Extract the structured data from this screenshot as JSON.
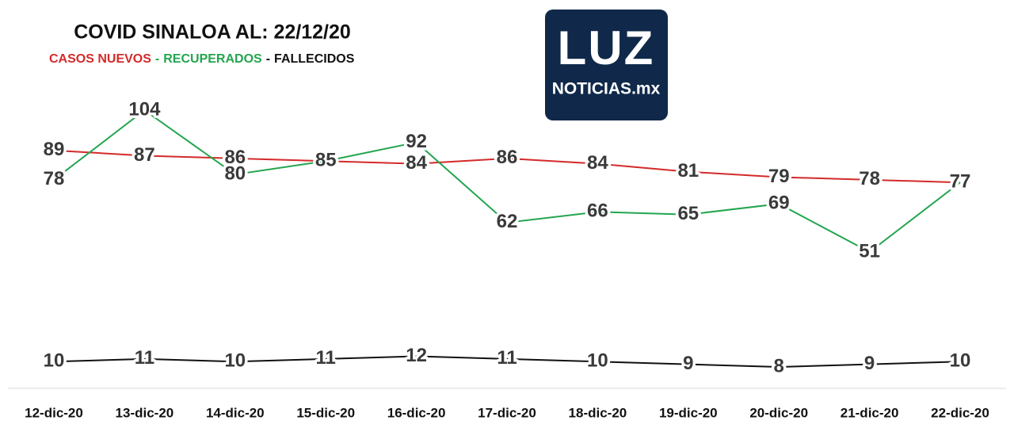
{
  "chart_data": {
    "type": "line",
    "title": "COVID SINALOA AL: 22/12/20",
    "legend_separator": "-",
    "categories": [
      "12-dic-20",
      "13-dic-20",
      "14-dic-20",
      "15-dic-20",
      "16-dic-20",
      "17-dic-20",
      "18-dic-20",
      "19-dic-20",
      "20-dic-20",
      "21-dic-20",
      "22-dic-20"
    ],
    "series": [
      {
        "name": "CASOS NUEVOS",
        "color": "#d42a2a",
        "values": [
          89,
          87,
          86,
          85,
          84,
          86,
          84,
          81,
          79,
          78,
          77
        ]
      },
      {
        "name": "RECUPERADOS",
        "color": "#23a64f",
        "values": [
          78,
          104,
          80,
          85,
          92,
          62,
          66,
          65,
          69,
          51,
          77
        ]
      },
      {
        "name": "FALLECIDOS",
        "color": "#111111",
        "values": [
          10,
          11,
          10,
          11,
          12,
          11,
          10,
          9,
          8,
          9,
          10
        ]
      }
    ],
    "ylim": [
      0,
      115
    ]
  },
  "logo": {
    "title": "LUZ",
    "subtitle": "NOTICIAS.mx"
  }
}
